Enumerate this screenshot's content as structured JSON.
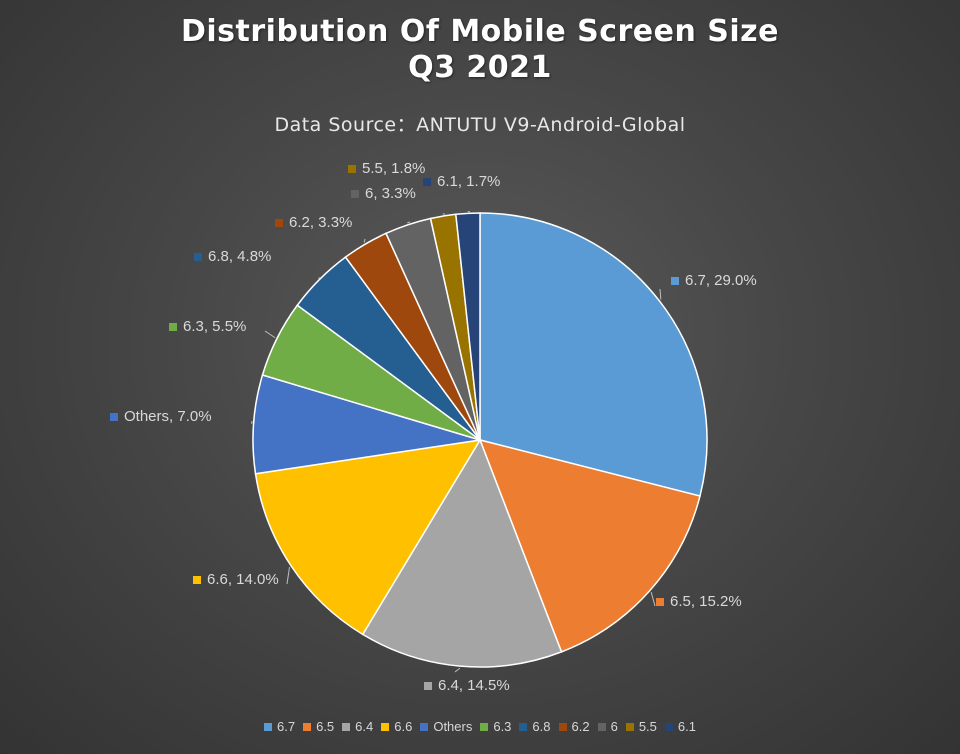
{
  "chart_data": {
    "type": "pie",
    "title": "Distribution Of Mobile Screen Size",
    "subtitle_line": "Q3 2021",
    "source": "Data Source：ANTUTU V9-Android-Global",
    "legend_position": "bottom",
    "slices": [
      {
        "label": "6.7",
        "value": 29.0,
        "display": "6.7, 29.0%",
        "color": "#5b9bd5"
      },
      {
        "label": "6.5",
        "value": 15.2,
        "display": "6.5, 15.2%",
        "color": "#ed7d31"
      },
      {
        "label": "6.4",
        "value": 14.5,
        "display": "6.4, 14.5%",
        "color": "#a5a5a5"
      },
      {
        "label": "6.6",
        "value": 14.0,
        "display": "6.6, 14.0%",
        "color": "#ffc000"
      },
      {
        "label": "Others",
        "value": 7.0,
        "display": "Others, 7.0%",
        "color": "#4472c4"
      },
      {
        "label": "6.3",
        "value": 5.5,
        "display": "6.3, 5.5%",
        "color": "#70ad47"
      },
      {
        "label": "6.8",
        "value": 4.8,
        "display": "6.8, 4.8%",
        "color": "#255e91"
      },
      {
        "label": "6.2",
        "value": 3.3,
        "display": "6.2, 3.3%",
        "color": "#9e480e"
      },
      {
        "label": "6",
        "value": 3.3,
        "display": "6, 3.3%",
        "color": "#636363"
      },
      {
        "label": "5.5",
        "value": 1.8,
        "display": "5.5, 1.8%",
        "color": "#997300"
      },
      {
        "label": "6.1",
        "value": 1.7,
        "display": "6.1, 1.7%",
        "color": "#264478"
      }
    ]
  }
}
